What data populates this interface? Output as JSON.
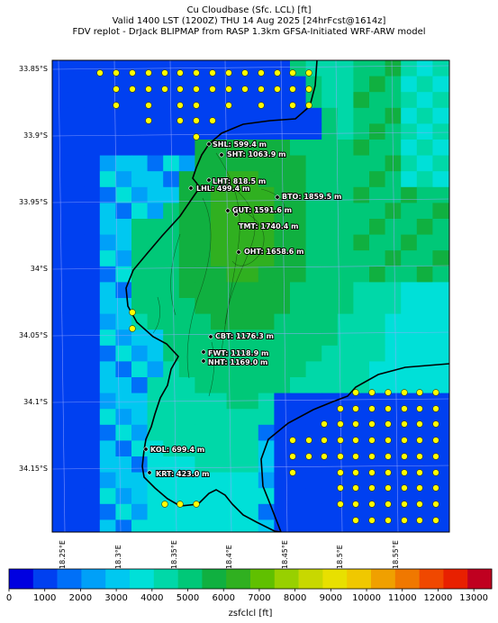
{
  "title_lines": [
    "Cu Cloudbase (Sfc. LCL) [ft]",
    "Valid 1400 LST (1200Z) THU 14 Aug 2025 [24hrFcst@1614z]",
    "FDV replot - DrJack BLIPMAP from RASP 1.3km GFSA-Initiated WRF-ARW model"
  ],
  "lat_ticks": [
    "33.85°S",
    "33.9°S",
    "33.95°S",
    "34°S",
    "34.05°S",
    "34.1°S",
    "34.15°S"
  ],
  "lon_ticks": [
    "18.25°E",
    "18.3°E",
    "18.35°E",
    "18.4°E",
    "18.45°E",
    "18.5°E",
    "18.55°E"
  ],
  "stations": [
    {
      "label": "SHL: 599.4 m"
    },
    {
      "label": "SHT: 1063.9 m"
    },
    {
      "label": "LHT: 818.5 m"
    },
    {
      "label": "LHL: 499.4 m"
    },
    {
      "label": "BTO: 1859.5 m"
    },
    {
      "label": "GUT: 1591.6 m"
    },
    {
      "label": "TMT: 1740.4 m"
    },
    {
      "label": "OHT: 1658.6 m"
    },
    {
      "label": "CBT: 1176.3 m"
    },
    {
      "label": "FWT: 1118.9 m"
    },
    {
      "label": "NHT: 1169.0 m"
    },
    {
      "label": "KOL: 699.4 m"
    },
    {
      "label": "KRT: 423.0 m"
    }
  ],
  "colorbar": {
    "ticks": [
      "0",
      "1000",
      "2000",
      "3000",
      "4000",
      "5000",
      "6000",
      "7000",
      "8000",
      "9000",
      "10000",
      "11000",
      "12000",
      "13000"
    ],
    "label": "zsfclcl [ft]",
    "colors": [
      "#0000e0",
      "#0040f0",
      "#0070f8",
      "#00a0f8",
      "#00c8f0",
      "#00e0d8",
      "#00d8a8",
      "#00c878",
      "#10b040",
      "#30b020",
      "#60c000",
      "#98d000",
      "#c8d800",
      "#e8e000",
      "#f0c800",
      "#f0a000",
      "#f07800",
      "#f04800",
      "#e82000",
      "#c00020"
    ]
  },
  "legend_colors": {
    "sea": "#0040f0",
    "yellow_dot": "#ffff00"
  }
}
